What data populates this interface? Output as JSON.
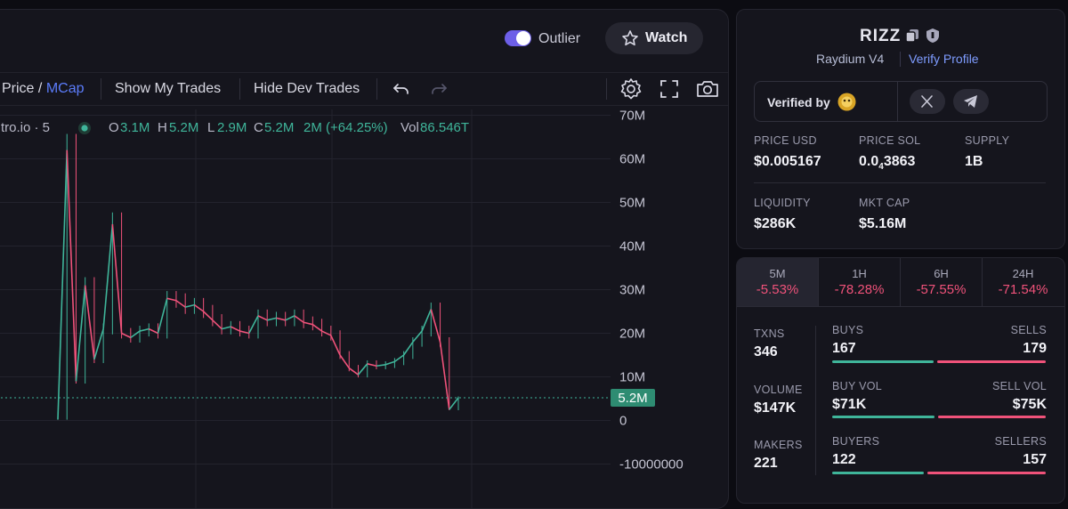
{
  "header": {
    "outlier_label": "Outlier",
    "watch_label": "Watch"
  },
  "toolbar": {
    "price_label": "Price",
    "slash": "/",
    "mcap_label": "MCap",
    "show_trades": "Show My Trades",
    "hide_dev": "Hide Dev Trades"
  },
  "legend": {
    "source": "tro.io · 5",
    "o_key": "O",
    "o_val": "3.1M",
    "h_key": "H",
    "h_val": "5.2M",
    "l_key": "L",
    "l_val": "2.9M",
    "c_key": "C",
    "c_val": "5.2M",
    "change": "2M (+64.25%)",
    "vol_key": "Vol",
    "vol_val": "86.546T"
  },
  "chart_data": {
    "type": "candlestick",
    "title": "",
    "xlabel": "",
    "ylabel": "",
    "y_ticks": [
      "70M",
      "60M",
      "50M",
      "40M",
      "30M",
      "20M",
      "10M",
      "0",
      "-10000000"
    ],
    "ylim": [
      -10000000,
      70000000
    ],
    "current_value": 5200000,
    "current_label": "5.2M",
    "grid": true,
    "series": [
      {
        "values": [
          200000,
          62000000,
          9000000,
          31000000,
          14000000,
          21000000,
          45000000,
          20000000,
          19000000,
          20500000,
          21000000,
          20000000,
          28000000,
          27500000,
          26000000,
          26500000,
          25000000,
          23000000,
          21000000,
          21500000,
          20500000,
          20000000,
          24000000,
          23000000,
          23500000,
          23000000,
          24000000,
          22500000,
          22000000,
          20500000,
          19500000,
          15000000,
          12000000,
          10500000,
          13000000,
          12500000,
          12800000,
          13500000,
          15000000,
          18000000,
          20500000,
          25500000,
          18000000,
          2500000,
          5200000
        ]
      }
    ]
  },
  "token": {
    "name": "RIZZ",
    "dex": "Raydium V4",
    "verify_profile": "Verify Profile",
    "verified_by": "Verified by"
  },
  "stats": {
    "price_usd_label": "PRICE USD",
    "price_usd": "$0.005167",
    "price_sol_label": "PRICE SOL",
    "price_sol_main": "0.0",
    "price_sol_sub": "4",
    "price_sol_rest": "3863",
    "supply_label": "SUPPLY",
    "supply": "1B",
    "liquidity_label": "LIQUIDITY",
    "liquidity": "$286K",
    "mktcap_label": "MKT CAP",
    "mktcap": "$5.16M"
  },
  "timeframes": [
    {
      "label": "5M",
      "value": "-5.53%"
    },
    {
      "label": "1H",
      "value": "-78.28%"
    },
    {
      "label": "6H",
      "value": "-57.55%"
    },
    {
      "label": "24H",
      "value": "-71.54%"
    }
  ],
  "txn": {
    "txns_label": "TXNS",
    "txns": "346",
    "volume_label": "VOLUME",
    "volume": "$147K",
    "makers_label": "MAKERS",
    "makers": "221",
    "buys_label": "BUYS",
    "buys": "167",
    "sells_label": "SELLS",
    "sells": "179",
    "buyvol_label": "BUY VOL",
    "buyvol": "$71K",
    "sellvol_label": "SELL VOL",
    "sellvol": "$75K",
    "buyers_label": "BUYERS",
    "buyers": "122",
    "sellers_label": "SELLERS",
    "sellers": "157",
    "buy_ratio": 0.483,
    "buyvol_ratio": 0.486,
    "buyers_ratio": 0.437
  },
  "colors": {
    "up": "#3fb59a",
    "down": "#f0527a",
    "accent": "#5b7cfa"
  }
}
